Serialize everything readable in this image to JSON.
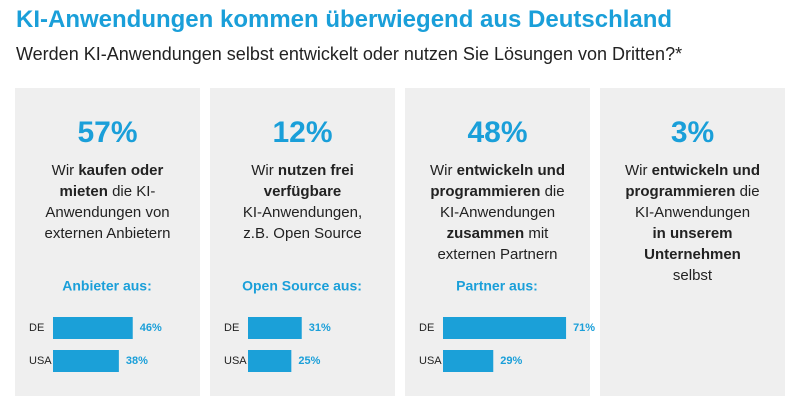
{
  "title": "KI-Anwendungen kommen überwiegend aus Deutschland",
  "subtitle": "Werden KI-Anwendungen selbst entwickelt oder nutzen Sie Lösungen von Dritten?*",
  "panels": [
    {
      "headline": "57%",
      "lines": [
        [
          {
            "text": "Wir ",
            "bold": false
          },
          {
            "text": "kaufen oder",
            "bold": true
          }
        ],
        [
          {
            "text": "mieten",
            "bold": true
          },
          {
            "text": " die KI-",
            "bold": false
          }
        ],
        [
          {
            "text": "Anwendungen von",
            "bold": false
          }
        ],
        [
          {
            "text": "externen Anbietern",
            "bold": false
          }
        ]
      ]
    },
    {
      "headline": "12%",
      "lines": [
        [
          {
            "text": "Wir ",
            "bold": false
          },
          {
            "text": "nutzen frei",
            "bold": true
          }
        ],
        [
          {
            "text": "verfügbare",
            "bold": true
          }
        ],
        [
          {
            "text": "KI-Anwendungen,",
            "bold": false
          }
        ],
        [
          {
            "text": "z.B. Open Source",
            "bold": false
          }
        ]
      ]
    },
    {
      "headline": "48%",
      "lines": [
        [
          {
            "text": "Wir ",
            "bold": false
          },
          {
            "text": "entwickeln und",
            "bold": true
          }
        ],
        [
          {
            "text": "programmieren",
            "bold": true
          },
          {
            "text": " die",
            "bold": false
          }
        ],
        [
          {
            "text": "KI-Anwendungen",
            "bold": false
          }
        ],
        [
          {
            "text": "zusammen",
            "bold": true
          },
          {
            "text": " mit",
            "bold": false
          }
        ],
        [
          {
            "text": "externen Partnern",
            "bold": false
          }
        ]
      ]
    },
    {
      "headline": "3%",
      "lines": [
        [
          {
            "text": "Wir ",
            "bold": false
          },
          {
            "text": "entwickeln und",
            "bold": true
          }
        ],
        [
          {
            "text": "programmieren",
            "bold": true
          },
          {
            "text": " die",
            "bold": false
          }
        ],
        [
          {
            "text": "KI-Anwendungen",
            "bold": false
          }
        ],
        [
          {
            "text": "in unserem",
            "bold": true
          }
        ],
        [
          {
            "text": "Unternehmen",
            "bold": true
          }
        ],
        [
          {
            "text": "selbst",
            "bold": false
          }
        ]
      ]
    }
  ],
  "chart_data": [
    {
      "type": "bar",
      "title": "Anbieter aus:",
      "categories": [
        "DE",
        "USA"
      ],
      "values": [
        46,
        38
      ],
      "value_labels": [
        "46%",
        "38%"
      ],
      "color": "#1ba0d8",
      "xlim": [
        0,
        75
      ]
    },
    {
      "type": "bar",
      "title": "Open Source aus:",
      "categories": [
        "DE",
        "USA"
      ],
      "values": [
        31,
        25
      ],
      "value_labels": [
        "31%",
        "25%"
      ],
      "color": "#1ba0d8",
      "xlim": [
        0,
        75
      ]
    },
    {
      "type": "bar",
      "title": "Partner aus:",
      "categories": [
        "DE",
        "USA"
      ],
      "values": [
        71,
        29
      ],
      "value_labels": [
        "71%",
        "29%"
      ],
      "color": "#1ba0d8",
      "xlim": [
        0,
        75
      ]
    }
  ]
}
